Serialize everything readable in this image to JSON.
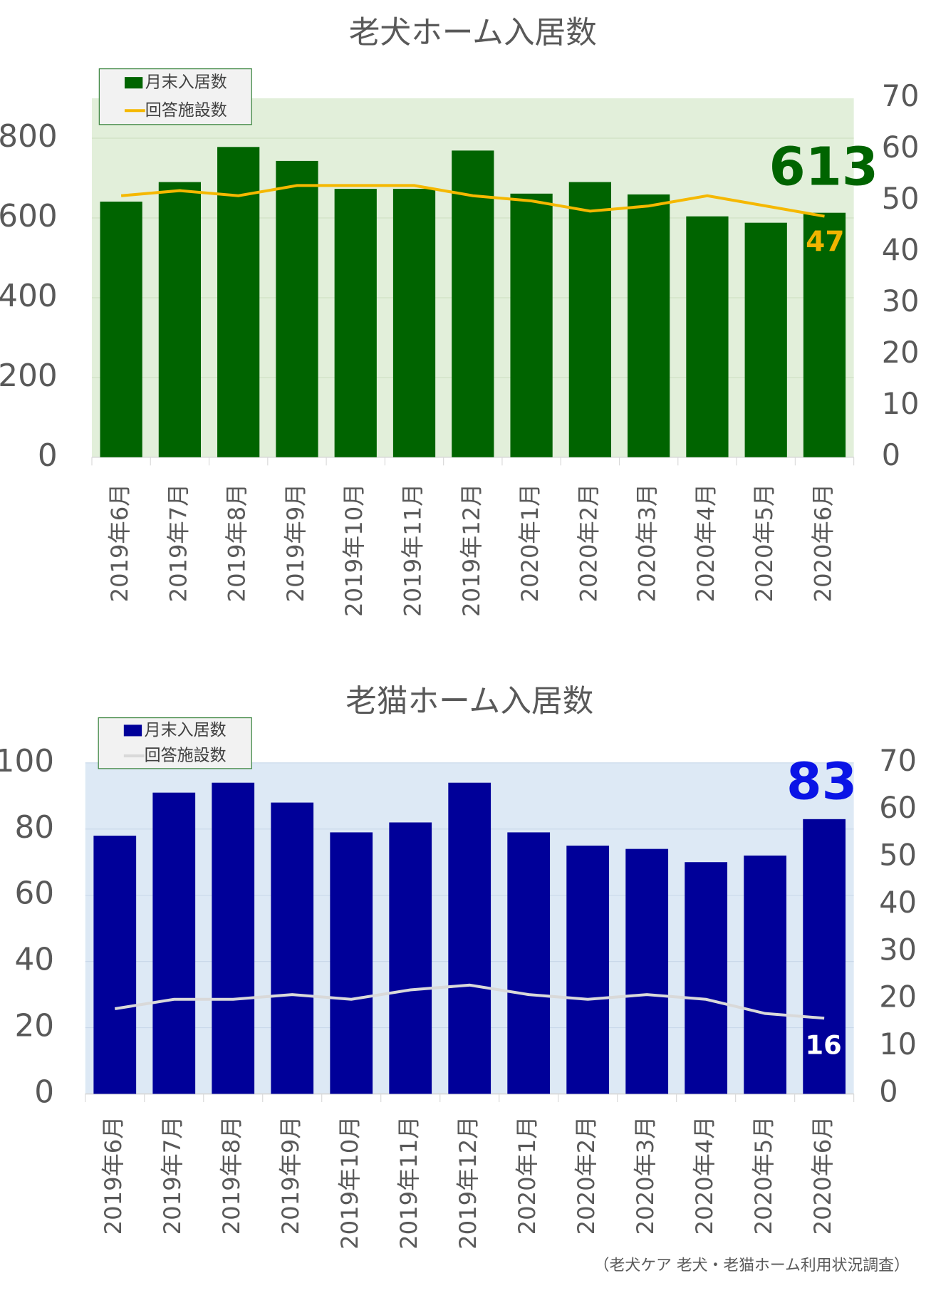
{
  "chart_data": [
    {
      "type": "bar",
      "title": "老犬ホーム入居数",
      "categories": [
        "2019年6月",
        "2019年7月",
        "2019年8月",
        "2019年9月",
        "2019年10月",
        "2019年11月",
        "2019年12月",
        "2020年1月",
        "2020年2月",
        "2020年3月",
        "2020年4月",
        "2020年5月",
        "2020年6月"
      ],
      "series": [
        {
          "name": "月末入居数",
          "type": "bar",
          "color": "#006400",
          "value_label_color": "#006400",
          "values": [
            641,
            690,
            778,
            743,
            673,
            673,
            769,
            661,
            690,
            659,
            604,
            588,
            613
          ]
        },
        {
          "name": "回答施設数",
          "type": "line",
          "axis": "y2",
          "color": "#f5b800",
          "value_label_color": "#f0b400",
          "values": [
            51,
            52,
            51,
            53,
            53,
            53,
            51,
            50,
            48,
            49,
            51,
            49,
            47
          ]
        }
      ],
      "ylim": [
        0,
        900
      ],
      "yticks": [
        0,
        200,
        400,
        600,
        800
      ],
      "y2lim": [
        0,
        70
      ],
      "y2ticks": [
        0,
        10,
        20,
        30,
        40,
        50,
        60,
        70
      ],
      "grid": true,
      "plot_background": "#e2efda",
      "grid_color": "#cfe0c3",
      "legend": "top-left"
    },
    {
      "type": "bar",
      "title": "老猫ホーム入居数",
      "categories": [
        "2019年6月",
        "2019年7月",
        "2019年8月",
        "2019年9月",
        "2019年10月",
        "2019年11月",
        "2019年12月",
        "2020年1月",
        "2020年2月",
        "2020年3月",
        "2020年4月",
        "2020年5月",
        "2020年6月"
      ],
      "series": [
        {
          "name": "月末入居数",
          "type": "bar",
          "color": "#000099",
          "value_label_color": "#0a14e6",
          "values": [
            78,
            91,
            94,
            88,
            79,
            82,
            94,
            79,
            75,
            74,
            70,
            72,
            83
          ]
        },
        {
          "name": "回答施設数",
          "type": "line",
          "axis": "y2",
          "color": "#d9d9d9",
          "value_label_color": "#ffffff",
          "values": [
            18,
            20,
            20,
            21,
            20,
            22,
            23,
            21,
            20,
            21,
            20,
            17,
            16
          ]
        }
      ],
      "ylim": [
        0,
        100
      ],
      "yticks": [
        0,
        20,
        40,
        60,
        80,
        100
      ],
      "y2lim": [
        0,
        70
      ],
      "y2ticks": [
        0,
        10,
        20,
        30,
        40,
        50,
        60,
        70
      ],
      "grid": true,
      "plot_background": "#dde9f5",
      "grid_color": "#c9d9ea",
      "legend": "top-left"
    }
  ],
  "source": "（老犬ケア 老犬・老猫ホーム利用状況調査）"
}
